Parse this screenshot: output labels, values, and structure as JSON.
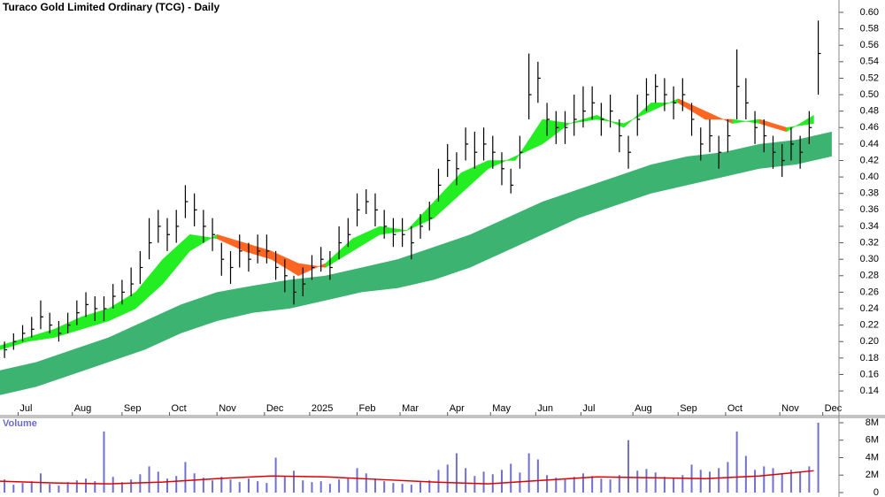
{
  "chart_data": [
    {
      "type": "ohlc",
      "title": "Turaco Gold Limited Ordinary (TCG) - Daily",
      "color": "#000000",
      "x": [
        2,
        6,
        10,
        14,
        18,
        22,
        26,
        30,
        34,
        38,
        42,
        46,
        50,
        54,
        58,
        62,
        66,
        70,
        74,
        78,
        82,
        86,
        90,
        94,
        98,
        102,
        106,
        110,
        114,
        118,
        122,
        126,
        130,
        134,
        138,
        142,
        146,
        150,
        154,
        158,
        162,
        166,
        170,
        174,
        178,
        182,
        186,
        190,
        194,
        198,
        202,
        206,
        210,
        214,
        218,
        222,
        226,
        230,
        234,
        238,
        242,
        246,
        250,
        254,
        258,
        262,
        266,
        270,
        274,
        278,
        282,
        286,
        290,
        294,
        298,
        302,
        306,
        310,
        314,
        318,
        322,
        326,
        330,
        334,
        338,
        342,
        346,
        350,
        354,
        358,
        362
      ],
      "high": [
        0.2,
        0.21,
        0.22,
        0.23,
        0.25,
        0.235,
        0.225,
        0.235,
        0.25,
        0.26,
        0.255,
        0.255,
        0.27,
        0.275,
        0.29,
        0.31,
        0.35,
        0.36,
        0.35,
        0.36,
        0.39,
        0.38,
        0.36,
        0.35,
        0.32,
        0.31,
        0.33,
        0.32,
        0.33,
        0.33,
        0.31,
        0.3,
        0.28,
        0.29,
        0.305,
        0.315,
        0.31,
        0.34,
        0.35,
        0.38,
        0.385,
        0.38,
        0.36,
        0.35,
        0.35,
        0.34,
        0.355,
        0.37,
        0.41,
        0.44,
        0.43,
        0.46,
        0.455,
        0.46,
        0.45,
        0.43,
        0.41,
        0.45,
        0.55,
        0.54,
        0.49,
        0.48,
        0.48,
        0.5,
        0.51,
        0.51,
        0.49,
        0.5,
        0.47,
        0.45,
        0.5,
        0.52,
        0.525,
        0.52,
        0.51,
        0.52,
        0.49,
        0.46,
        0.47,
        0.45,
        0.47,
        0.555,
        0.52,
        0.48,
        0.47,
        0.45,
        0.44,
        0.46,
        0.45,
        0.48,
        0.59
      ],
      "low": [
        0.18,
        0.19,
        0.2,
        0.205,
        0.215,
        0.21,
        0.2,
        0.21,
        0.22,
        0.23,
        0.225,
        0.225,
        0.24,
        0.245,
        0.255,
        0.27,
        0.3,
        0.32,
        0.31,
        0.32,
        0.35,
        0.34,
        0.32,
        0.31,
        0.28,
        0.27,
        0.29,
        0.285,
        0.295,
        0.295,
        0.275,
        0.26,
        0.245,
        0.255,
        0.275,
        0.285,
        0.275,
        0.3,
        0.315,
        0.34,
        0.355,
        0.34,
        0.325,
        0.315,
        0.315,
        0.3,
        0.325,
        0.335,
        0.37,
        0.4,
        0.39,
        0.42,
        0.41,
        0.42,
        0.41,
        0.39,
        0.38,
        0.41,
        0.47,
        0.49,
        0.45,
        0.44,
        0.44,
        0.45,
        0.46,
        0.47,
        0.45,
        0.46,
        0.43,
        0.41,
        0.45,
        0.48,
        0.49,
        0.48,
        0.47,
        0.48,
        0.45,
        0.42,
        0.43,
        0.41,
        0.43,
        0.47,
        0.47,
        0.44,
        0.43,
        0.41,
        0.4,
        0.42,
        0.41,
        0.44,
        0.5
      ],
      "close": [
        0.19,
        0.2,
        0.21,
        0.215,
        0.23,
        0.22,
        0.21,
        0.22,
        0.235,
        0.245,
        0.24,
        0.24,
        0.255,
        0.26,
        0.27,
        0.29,
        0.32,
        0.34,
        0.33,
        0.34,
        0.37,
        0.36,
        0.34,
        0.33,
        0.3,
        0.29,
        0.31,
        0.3,
        0.31,
        0.31,
        0.29,
        0.28,
        0.26,
        0.27,
        0.29,
        0.3,
        0.29,
        0.32,
        0.33,
        0.36,
        0.37,
        0.36,
        0.34,
        0.33,
        0.33,
        0.32,
        0.34,
        0.35,
        0.39,
        0.42,
        0.41,
        0.44,
        0.43,
        0.44,
        0.43,
        0.41,
        0.39,
        0.43,
        0.5,
        0.52,
        0.47,
        0.46,
        0.46,
        0.47,
        0.48,
        0.49,
        0.47,
        0.48,
        0.45,
        0.43,
        0.47,
        0.5,
        0.51,
        0.5,
        0.49,
        0.5,
        0.47,
        0.44,
        0.45,
        0.43,
        0.45,
        0.51,
        0.49,
        0.46,
        0.45,
        0.43,
        0.42,
        0.44,
        0.43,
        0.46,
        0.55
      ],
      "xlim": [
        0,
        370
      ],
      "xticks": [
        {
          "value": 8,
          "label": "Jul"
        },
        {
          "value": 32,
          "label": "Aug"
        },
        {
          "value": 54,
          "label": "Sep"
        },
        {
          "value": 75,
          "label": "Oct"
        },
        {
          "value": 96,
          "label": "Nov"
        },
        {
          "value": 117,
          "label": "Dec"
        },
        {
          "value": 137,
          "label": "2025"
        },
        {
          "value": 158,
          "label": "Feb"
        },
        {
          "value": 177,
          "label": "Mar"
        },
        {
          "value": 198,
          "label": "Apr"
        },
        {
          "value": 217,
          "label": "May"
        },
        {
          "value": 237,
          "label": "Jun"
        },
        {
          "value": 257,
          "label": "Jul"
        },
        {
          "value": 280,
          "label": "Aug"
        },
        {
          "value": 300,
          "label": "Sep"
        },
        {
          "value": 321,
          "label": "Oct"
        },
        {
          "value": 345,
          "label": "Nov"
        },
        {
          "value": 364,
          "label": "Dec"
        }
      ],
      "ylim": [
        0.11,
        0.615
      ],
      "yticks": [
        0.14,
        0.16,
        0.18,
        {
          "value": 0.2,
          "label": "0.20"
        },
        0.22,
        0.24,
        0.26,
        0.28,
        {
          "value": 0.3,
          "label": "0.30"
        },
        0.32,
        0.34,
        0.36,
        0.38,
        {
          "value": 0.4,
          "label": "0.40"
        },
        0.42,
        0.44,
        0.46,
        0.48,
        {
          "value": 0.5,
          "label": "0.50"
        },
        0.52,
        0.54,
        0.56,
        0.58,
        {
          "value": 0.6,
          "label": "0.60"
        }
      ],
      "bands": [
        {
          "type": "band",
          "color": "#3cb371",
          "x": [
            0,
            16,
            32,
            48,
            64,
            80,
            96,
            112,
            128,
            144,
            160,
            176,
            192,
            208,
            224,
            240,
            256,
            272,
            288,
            304,
            320,
            336,
            352,
            368
          ],
          "upper": [
            0.165,
            0.175,
            0.19,
            0.205,
            0.225,
            0.245,
            0.26,
            0.268,
            0.275,
            0.28,
            0.29,
            0.3,
            0.315,
            0.33,
            0.35,
            0.37,
            0.385,
            0.4,
            0.415,
            0.425,
            0.43,
            0.44,
            0.445,
            0.455
          ],
          "lower": [
            0.135,
            0.145,
            0.16,
            0.175,
            0.19,
            0.21,
            0.225,
            0.235,
            0.24,
            0.25,
            0.26,
            0.265,
            0.275,
            0.29,
            0.31,
            0.33,
            0.35,
            0.365,
            0.38,
            0.39,
            0.4,
            0.41,
            0.415,
            0.425
          ]
        },
        {
          "type": "ribbon",
          "up_color": "#22ee22",
          "down_color": "#ff6622",
          "x": [
            0,
            12,
            24,
            36,
            48,
            60,
            72,
            84,
            96,
            108,
            120,
            132,
            144,
            156,
            168,
            180,
            192,
            204,
            216,
            228,
            240,
            252,
            264,
            276,
            288,
            300,
            312,
            324,
            336,
            348,
            360
          ],
          "fast": [
            0.195,
            0.205,
            0.215,
            0.23,
            0.24,
            0.26,
            0.3,
            0.33,
            0.325,
            0.31,
            0.3,
            0.28,
            0.295,
            0.325,
            0.34,
            0.335,
            0.37,
            0.405,
            0.42,
            0.42,
            0.47,
            0.465,
            0.475,
            0.46,
            0.49,
            0.49,
            0.47,
            0.47,
            0.465,
            0.455,
            0.475
          ],
          "slow": [
            0.19,
            0.2,
            0.205,
            0.215,
            0.225,
            0.24,
            0.27,
            0.31,
            0.33,
            0.32,
            0.31,
            0.295,
            0.29,
            0.31,
            0.33,
            0.335,
            0.35,
            0.38,
            0.41,
            0.425,
            0.44,
            0.465,
            0.47,
            0.465,
            0.48,
            0.495,
            0.48,
            0.465,
            0.47,
            0.46,
            0.465
          ]
        }
      ]
    },
    {
      "type": "bar",
      "title": "Volume",
      "color": "#7070d0",
      "x": [
        2,
        6,
        10,
        14,
        18,
        22,
        26,
        30,
        34,
        38,
        42,
        46,
        50,
        54,
        58,
        62,
        66,
        70,
        74,
        78,
        82,
        86,
        90,
        94,
        98,
        102,
        106,
        110,
        114,
        118,
        122,
        126,
        130,
        134,
        138,
        142,
        146,
        150,
        154,
        158,
        162,
        166,
        170,
        174,
        178,
        182,
        186,
        190,
        194,
        198,
        202,
        206,
        210,
        214,
        218,
        222,
        226,
        230,
        234,
        238,
        242,
        246,
        250,
        254,
        258,
        262,
        266,
        270,
        274,
        278,
        282,
        286,
        290,
        294,
        298,
        302,
        306,
        310,
        314,
        318,
        322,
        326,
        330,
        334,
        338,
        342,
        346,
        350,
        354,
        358,
        362
      ],
      "values": [
        1500000,
        900000,
        1100000,
        1300000,
        2200000,
        1000000,
        800000,
        1200000,
        1400000,
        1600000,
        1300000,
        7000000,
        1800000,
        1200000,
        1500000,
        2100000,
        3000000,
        2400000,
        1600000,
        1900000,
        3500000,
        2200000,
        1700000,
        1400000,
        1800000,
        1500000,
        1200000,
        1600000,
        1300000,
        1100000,
        4000000,
        1800000,
        2500000,
        1400000,
        1200000,
        1300000,
        1000000,
        1500000,
        1700000,
        2800000,
        2200000,
        1600000,
        1300000,
        1100000,
        1000000,
        900000,
        1200000,
        1400000,
        2600000,
        3200000,
        4500000,
        2800000,
        1900000,
        2400000,
        2100000,
        2600000,
        3300000,
        2300000,
        4500000,
        3800000,
        2000000,
        1700000,
        1500000,
        1800000,
        2200000,
        1900000,
        1600000,
        1500000,
        2000000,
        6000000,
        2500000,
        2700000,
        2300000,
        1800000,
        1700000,
        2000000,
        3200000,
        2600000,
        2400000,
        2800000,
        3500000,
        7000000,
        4200000,
        2600000,
        3000000,
        2800000,
        2200000,
        2600000,
        2400000,
        3000000,
        8000000
      ],
      "xlim": [
        0,
        370
      ],
      "ylim": [
        0,
        8000000
      ],
      "yticks": [
        0,
        {
          "value": 2000000,
          "label": "2M"
        },
        {
          "value": 4000000,
          "label": "4M"
        },
        {
          "value": 6000000,
          "label": "6M"
        },
        {
          "value": 8000000,
          "label": "8M"
        }
      ],
      "ma": {
        "color": "#dd0000",
        "x": [
          0,
          24,
          48,
          72,
          96,
          120,
          144,
          168,
          192,
          216,
          240,
          264,
          288,
          312,
          336,
          360
        ],
        "values": [
          1300000,
          1100000,
          1000000,
          1200000,
          1600000,
          1900000,
          1800000,
          1500000,
          1200000,
          1000000,
          1400000,
          1800000,
          1700000,
          1600000,
          1900000,
          2500000
        ]
      }
    }
  ]
}
